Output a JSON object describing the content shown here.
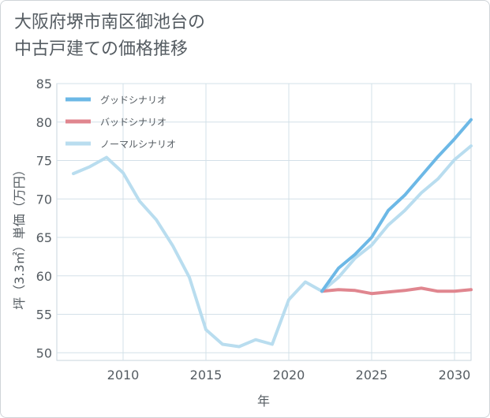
{
  "chart_data": {
    "type": "line",
    "title": [
      "大阪府堺市南区御池台の",
      "中古戸建ての価格推移"
    ],
    "xlabel": "年",
    "ylabel": "坪（3.3㎡）単価（万円）",
    "xlim": [
      2006,
      2031
    ],
    "ylim": [
      49,
      85
    ],
    "xticks": [
      2010,
      2015,
      2020,
      2025,
      2030
    ],
    "yticks": [
      50,
      55,
      60,
      65,
      70,
      75,
      80,
      85
    ],
    "grid": true,
    "legend_position": "top-left",
    "series": [
      {
        "name": "グッドシナリオ",
        "color": "#6cb8e6",
        "x": [
          2022,
          2023,
          2024,
          2025,
          2026,
          2027,
          2028,
          2029,
          2030,
          2031
        ],
        "values": [
          58.0,
          61.0,
          62.8,
          65.0,
          68.5,
          70.5,
          73.0,
          75.5,
          77.8,
          80.3
        ]
      },
      {
        "name": "バッドシナリオ",
        "color": "#e0868f",
        "x": [
          2022,
          2023,
          2024,
          2025,
          2026,
          2027,
          2028,
          2029,
          2030,
          2031
        ],
        "values": [
          58.0,
          58.2,
          58.1,
          57.7,
          57.9,
          58.1,
          58.4,
          58.0,
          58.0,
          58.2
        ]
      },
      {
        "name": "ノーマルシナリオ",
        "color": "#b9ddef",
        "x": [
          2007,
          2008,
          2009,
          2010,
          2011,
          2012,
          2013,
          2014,
          2015,
          2016,
          2017,
          2018,
          2019,
          2020,
          2021,
          2022,
          2023,
          2024,
          2025,
          2026,
          2027,
          2028,
          2029,
          2030,
          2031
        ],
        "values": [
          73.3,
          74.2,
          75.4,
          73.4,
          69.7,
          67.3,
          63.9,
          59.8,
          53.0,
          51.1,
          50.8,
          51.7,
          51.1,
          56.9,
          59.2,
          58.0,
          59.8,
          62.3,
          64.0,
          66.6,
          68.5,
          70.8,
          72.6,
          75.1,
          76.9
        ]
      }
    ]
  }
}
